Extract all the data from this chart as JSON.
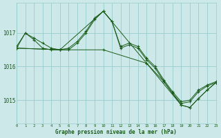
{
  "background_color": "#cce8e8",
  "grid_color": "#99cccc",
  "line_color": "#1a5c1a",
  "xlabel": "Graphe pression niveau de la mer (hPa)",
  "ylim": [
    1014.3,
    1017.9
  ],
  "xlim": [
    0,
    23
  ],
  "yticks": [
    1015,
    1016,
    1017
  ],
  "xticks": [
    0,
    1,
    2,
    3,
    4,
    5,
    6,
    7,
    8,
    9,
    10,
    11,
    12,
    13,
    14,
    15,
    16,
    17,
    18,
    19,
    20,
    21,
    22,
    23
  ],
  "series1_x": [
    0,
    1,
    2,
    3,
    4,
    5,
    6,
    7,
    8,
    9,
    10,
    11,
    12,
    13,
    14,
    15,
    16,
    17,
    18,
    19,
    20,
    21,
    22,
    23
  ],
  "series1_y": [
    1016.6,
    1017.0,
    1016.85,
    1016.7,
    1016.55,
    1016.5,
    1016.5,
    1016.7,
    1017.0,
    1017.4,
    1017.65,
    1017.35,
    1016.6,
    1016.7,
    1016.6,
    1016.25,
    1016.0,
    1015.6,
    1015.25,
    1014.95,
    1015.0,
    1015.3,
    1015.45,
    1015.55
  ],
  "series2_x": [
    0,
    1,
    2,
    3,
    4,
    5,
    6,
    7,
    8,
    9,
    10,
    11,
    12,
    13,
    14,
    15,
    16,
    17,
    18,
    19,
    20,
    21,
    22,
    23
  ],
  "series2_y": [
    1016.55,
    1017.0,
    1016.8,
    1016.55,
    1016.5,
    1016.5,
    1016.55,
    1016.75,
    1017.05,
    1017.45,
    1017.65,
    1017.35,
    1016.55,
    1016.65,
    1016.55,
    1016.2,
    1015.95,
    1015.55,
    1015.2,
    1014.9,
    1014.95,
    1015.25,
    1015.42,
    1015.52
  ],
  "series3_x": [
    0,
    5,
    10,
    15,
    19,
    20,
    21,
    22,
    23
  ],
  "series3_y": [
    1016.55,
    1016.5,
    1016.5,
    1016.1,
    1014.85,
    1014.78,
    1015.05,
    1015.3,
    1015.52
  ],
  "series4_x": [
    0,
    5,
    10,
    15,
    17,
    18,
    19,
    20,
    21,
    22,
    23
  ],
  "series4_y": [
    1016.55,
    1016.5,
    1017.65,
    1016.1,
    1015.55,
    1015.2,
    1014.85,
    1014.78,
    1015.05,
    1015.3,
    1015.52
  ]
}
